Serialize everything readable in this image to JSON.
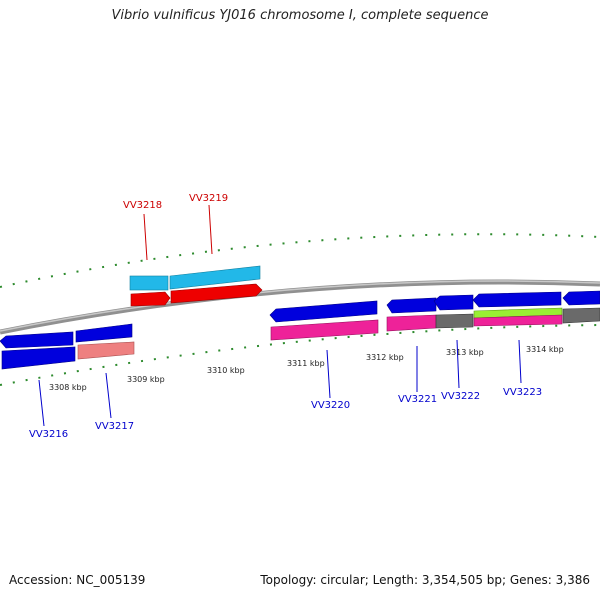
{
  "title": "Vibrio vulnificus YJ016 chromosome I, complete sequence",
  "footer": {
    "accession": "Accession: NC_005139",
    "summary": "Topology: circular; Length: 3,354,505 bp; Genes: 3,386"
  },
  "colors": {
    "backbone": "#808080",
    "tick": "#2e8b2e",
    "label_top": "#cc0000",
    "label_bottom": "#0000cc",
    "gene_blue": "#0000dd",
    "gene_cyan": "#22b8e8",
    "gene_red": "#ee0000",
    "gene_pink": "#ee2299",
    "gene_salmon": "#ee8080",
    "gene_gray": "#6a6a6a",
    "gene_lime": "#99ee33"
  },
  "kbp_labels": [
    "3308 kbp",
    "3309 kbp",
    "3310 kbp",
    "3311 kbp",
    "3312 kbp",
    "3313 kbp",
    "3314 kbp"
  ],
  "gene_labels_top": [
    "VV3218",
    "VV3219"
  ],
  "gene_labels_bottom": [
    "VV3216",
    "VV3217",
    "VV3220",
    "VV3221",
    "VV3222",
    "VV3223"
  ]
}
